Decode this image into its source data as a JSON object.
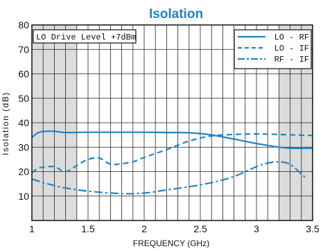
{
  "chart_data": {
    "type": "line",
    "title": "Isolation",
    "xlabel": "FREQUENCY (GHz)",
    "ylabel": "Isolation (dB)",
    "xlim": [
      1,
      3.5
    ],
    "ylim": [
      0,
      80
    ],
    "x_ticks": [
      "1",
      "1.5",
      "2",
      "2.5",
      "3",
      "3.5"
    ],
    "y_ticks": [
      "10",
      "20",
      "30",
      "40",
      "50",
      "60",
      "70",
      "80"
    ],
    "x_tick_values": [
      1,
      1.5,
      2,
      2.5,
      3,
      3.5
    ],
    "y_tick_values": [
      10,
      20,
      30,
      40,
      50,
      60,
      70,
      80
    ],
    "grid": true,
    "legend_position": "top-right",
    "annotation": "LO Drive Level +7dBm",
    "shaded_x_ranges": [
      [
        1,
        1.4
      ],
      [
        3.2,
        3.5
      ]
    ],
    "line_color": "#1f84c6",
    "series": [
      {
        "name": "LO - RF",
        "style": "solid",
        "x": [
          1.0,
          1.05,
          1.1,
          1.2,
          1.3,
          1.5,
          1.8,
          2.0,
          2.2,
          2.4,
          2.6,
          2.8,
          3.0,
          3.2,
          3.3,
          3.4,
          3.5
        ],
        "y": [
          34,
          35.8,
          36.4,
          36.5,
          36.0,
          36.1,
          36.1,
          36.1,
          36.0,
          35.9,
          35.0,
          33.3,
          31.5,
          30.0,
          29.6,
          29.5,
          29.6
        ]
      },
      {
        "name": "LO - IF",
        "style": "dashed",
        "x": [
          1.0,
          1.05,
          1.1,
          1.2,
          1.3,
          1.4,
          1.5,
          1.6,
          1.7,
          1.8,
          1.9,
          2.0,
          2.2,
          2.4,
          2.6,
          2.8,
          3.0,
          3.2,
          3.4,
          3.5
        ],
        "y": [
          19.5,
          21.2,
          21.8,
          22.0,
          20.0,
          22.5,
          25.0,
          25.5,
          23.0,
          23.3,
          24.0,
          25.8,
          29.0,
          32.5,
          34.6,
          35.2,
          35.4,
          35.2,
          34.9,
          34.8
        ]
      },
      {
        "name": "RF - IF",
        "style": "dash-dot",
        "x": [
          1.0,
          1.1,
          1.2,
          1.3,
          1.5,
          1.8,
          2.0,
          2.2,
          2.4,
          2.6,
          2.8,
          3.0,
          3.1,
          3.2,
          3.3,
          3.4,
          3.45
        ],
        "y": [
          17,
          15.5,
          14.3,
          13.3,
          12.0,
          11.0,
          11.2,
          12.5,
          13.8,
          15.5,
          18.0,
          22.0,
          23.5,
          24.0,
          23.0,
          19.0,
          17.0
        ]
      }
    ]
  }
}
